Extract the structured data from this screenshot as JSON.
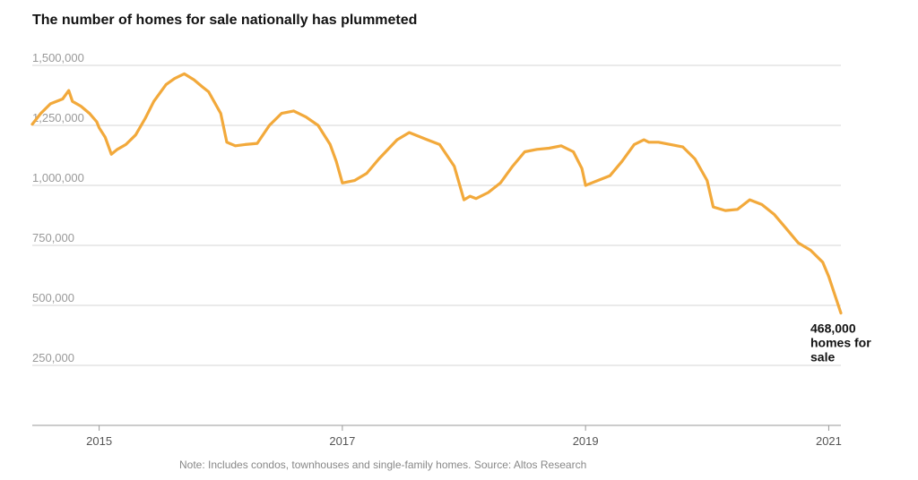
{
  "chart_data": {
    "type": "line",
    "title": "The number of homes for sale nationally has plummeted",
    "note": "Note: Includes condos, townhouses and single-family homes. Source: Altos Research",
    "ylim": [
      0,
      1500000
    ],
    "xlim": [
      2014.45,
      2021.1
    ],
    "y_ticks": [
      250000,
      500000,
      750000,
      1000000,
      1250000,
      1500000
    ],
    "y_tick_labels": [
      "250,000",
      "500,000",
      "750,000",
      "1,000,000",
      "1,250,000",
      "1,500,000"
    ],
    "x_ticks": [
      2015,
      2017,
      2019,
      2021
    ],
    "x_tick_labels": [
      "2015",
      "2017",
      "2019",
      "2021"
    ],
    "grid": true,
    "line_color": "#F2A93B",
    "annotation": [
      "468,000",
      "homes for",
      "sale"
    ],
    "series": [
      {
        "x": [
          2014.45,
          2014.52,
          2014.6,
          2014.7,
          2014.75,
          2014.78,
          2014.85,
          2014.92,
          2014.98,
          2015.0,
          2015.05,
          2015.1,
          2015.15,
          2015.22,
          2015.3,
          2015.38,
          2015.45,
          2015.55,
          2015.62,
          2015.7,
          2015.78,
          2015.85,
          2015.9,
          2016.0,
          2016.05,
          2016.12,
          2016.2,
          2016.3,
          2016.4,
          2016.5,
          2016.6,
          2016.7,
          2016.8,
          2016.9,
          2016.95,
          2017.0,
          2017.1,
          2017.2,
          2017.3,
          2017.45,
          2017.55,
          2017.7,
          2017.8,
          2017.92,
          2018.0,
          2018.05,
          2018.1,
          2018.2,
          2018.3,
          2018.4,
          2018.5,
          2018.6,
          2018.7,
          2018.8,
          2018.9,
          2018.97,
          2019.0,
          2019.05,
          2019.1,
          2019.2,
          2019.3,
          2019.4,
          2019.48,
          2019.52,
          2019.6,
          2019.7,
          2019.8,
          2019.9,
          2020.0,
          2020.05,
          2020.15,
          2020.25,
          2020.35,
          2020.45,
          2020.55,
          2020.65,
          2020.75,
          2020.85,
          2020.95,
          2021.0,
          2021.1
        ],
        "y": [
          1255000,
          1300000,
          1340000,
          1360000,
          1395000,
          1350000,
          1330000,
          1300000,
          1265000,
          1240000,
          1200000,
          1130000,
          1150000,
          1170000,
          1210000,
          1280000,
          1350000,
          1420000,
          1445000,
          1465000,
          1440000,
          1410000,
          1390000,
          1300000,
          1180000,
          1165000,
          1170000,
          1175000,
          1250000,
          1300000,
          1310000,
          1285000,
          1250000,
          1170000,
          1100000,
          1010000,
          1020000,
          1050000,
          1110000,
          1190000,
          1220000,
          1190000,
          1170000,
          1080000,
          940000,
          955000,
          945000,
          970000,
          1010000,
          1080000,
          1140000,
          1150000,
          1155000,
          1165000,
          1140000,
          1070000,
          1000000,
          1010000,
          1020000,
          1040000,
          1100000,
          1170000,
          1190000,
          1180000,
          1180000,
          1170000,
          1160000,
          1110000,
          1020000,
          910000,
          895000,
          900000,
          940000,
          920000,
          880000,
          820000,
          760000,
          730000,
          680000,
          620000,
          468000
        ]
      }
    ]
  }
}
